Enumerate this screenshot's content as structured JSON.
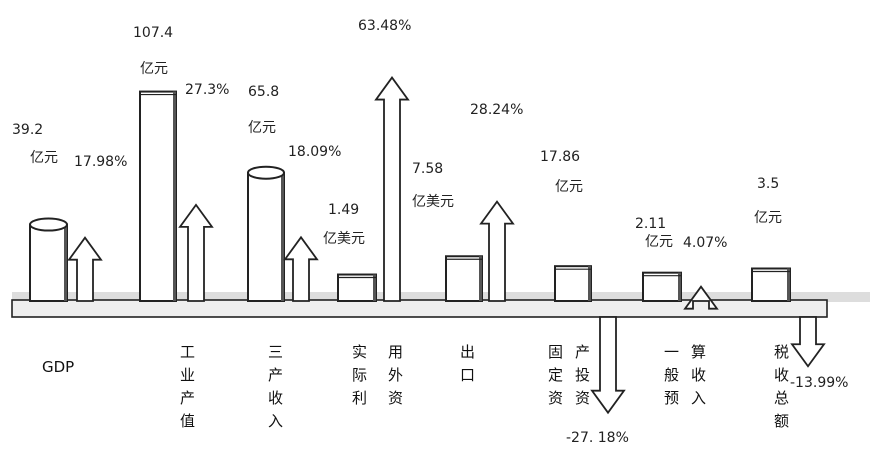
{
  "chart_data": {
    "type": "bar",
    "title": "",
    "xlabel": "",
    "ylabel": "",
    "legend": "none",
    "grid": false,
    "categories": [
      {
        "id": "gdp",
        "label": "GDP"
      },
      {
        "id": "gyczh",
        "label": "工业产值"
      },
      {
        "id": "sc",
        "label": "三产收入"
      },
      {
        "id": "sjly",
        "label": "实际利用外资"
      },
      {
        "id": "ck",
        "label": "出口"
      },
      {
        "id": "gdzc",
        "label": "固定资产投资"
      },
      {
        "id": "ybys",
        "label": "一般预算收入"
      },
      {
        "id": "ss",
        "label": "税收总额"
      }
    ],
    "series": [
      {
        "values": [
          39.2,
          107.4,
          65.8,
          1.49,
          7.58,
          17.86,
          2.11,
          3.5
        ],
        "value_labels": [
          "39.2",
          "107.4",
          "65.8",
          "1.49",
          "7.58",
          "17.86",
          "2.11",
          "3.5"
        ],
        "units": [
          "亿元",
          "亿元",
          "亿元",
          "亿美元",
          "亿美元",
          "亿元",
          "亿元",
          "亿元"
        ]
      },
      {
        "values": [
          17.98,
          27.3,
          18.09,
          63.48,
          28.24,
          -27.18,
          4.07,
          -13.99
        ],
        "value_labels": [
          "17.98%",
          "27.3%",
          "18.09%",
          "63.48%",
          "28.24%",
          "-27. 18%",
          "4.07%",
          "-13.99%"
        ]
      }
    ],
    "colors": {
      "ink": "#222222",
      "bar_fill": "#ffffff",
      "bar_shade": "#555555",
      "base_fill": "#eeeeee"
    }
  }
}
